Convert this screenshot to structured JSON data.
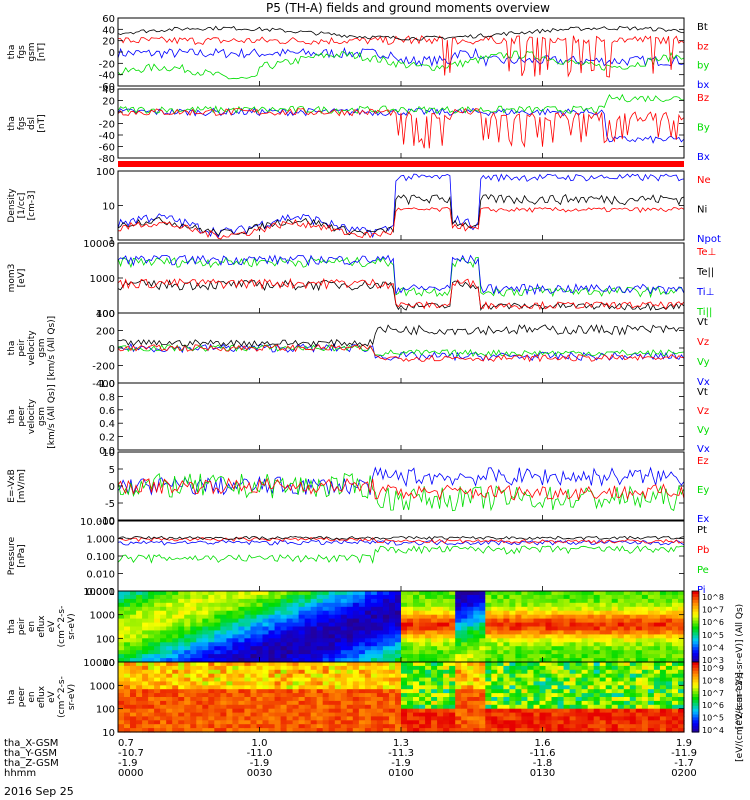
{
  "title": "P5 (TH-A) fields and ground moments overview",
  "date": "2016 Sep 25",
  "chart_data": {
    "type": "line",
    "x_ticks": [
      "0000",
      "0030",
      "0100",
      "0130",
      "0200"
    ],
    "ephemeris": [
      {
        "label": "tha_X-GSM",
        "values": [
          "0.7",
          "1.0",
          "1.3",
          "1.6",
          "1.9"
        ]
      },
      {
        "label": "tha_Y-GSM",
        "values": [
          "-10.7",
          "-11.0",
          "-11.3",
          "-11.6",
          "-11.9"
        ]
      },
      {
        "label": "tha_Z-GSM",
        "values": [
          "-1.9",
          "-1.9",
          "-1.9",
          "-1.8",
          "-1.7"
        ]
      },
      {
        "label": "hhmm",
        "values": [
          "0000",
          "0030",
          "0100",
          "0130",
          "0200"
        ]
      }
    ],
    "panels": [
      {
        "ylabel": [
          "tha",
          "fgs",
          "gsm",
          "[nT]"
        ],
        "yticks": [
          "60",
          "40",
          "20",
          "0",
          "-20",
          "-40",
          "-60"
        ],
        "ylim": [
          -70,
          65
        ],
        "scale": "linear",
        "legend": [
          {
            "name": "Bt",
            "color": "#000000"
          },
          {
            "name": "bz",
            "color": "#ff0000"
          },
          {
            "name": "by",
            "color": "#00dd00"
          },
          {
            "name": "bx",
            "color": "#0000ff"
          }
        ]
      },
      {
        "ylabel": [
          "tha",
          "fgs",
          "dsl",
          "[nT]"
        ],
        "yticks": [
          "40",
          "20",
          "0",
          "-20",
          "-40",
          "-60",
          "-80"
        ],
        "ylim": [
          -95,
          55
        ],
        "scale": "linear",
        "legend": [
          {
            "name": "Bz",
            "color": "#ff0000"
          },
          {
            "name": "By",
            "color": "#00dd00"
          },
          {
            "name": "Bx",
            "color": "#0000ff"
          }
        ]
      },
      {
        "ylabel": [
          "Density",
          "[1/cc]",
          "[cm-3]"
        ],
        "yticks": [
          "100",
          "10",
          "1"
        ],
        "ylim": [
          0.8,
          250
        ],
        "scale": "log",
        "legend": [
          {
            "name": "Ne",
            "color": "#ff0000"
          },
          {
            "name": "Ni",
            "color": "#000000"
          },
          {
            "name": "Npot",
            "color": "#0000ff"
          }
        ]
      },
      {
        "ylabel": [
          "mom3",
          "[eV]"
        ],
        "yticks": [
          "10000",
          "1000",
          "100"
        ],
        "ylim": [
          30,
          12000
        ],
        "scale": "log",
        "legend": [
          {
            "name": "Te⊥",
            "color": "#ff0000"
          },
          {
            "name": "Te||",
            "color": "#000000"
          },
          {
            "name": "Ti⊥",
            "color": "#0000ff"
          },
          {
            "name": "Ti||",
            "color": "#00dd00"
          }
        ]
      },
      {
        "ylabel": [
          "tha",
          "peir",
          "velocity",
          "gsm",
          "[km/s (All Qs)]"
        ],
        "yticks": [
          "400",
          "200",
          "0",
          "-200",
          "-400"
        ],
        "ylim": [
          -420,
          420
        ],
        "scale": "linear",
        "legend": [
          {
            "name": "Vt",
            "color": "#000000"
          },
          {
            "name": "Vz",
            "color": "#ff0000"
          },
          {
            "name": "Vy",
            "color": "#00dd00"
          },
          {
            "name": "Vx",
            "color": "#0000ff"
          }
        ]
      },
      {
        "ylabel": [
          "tha",
          "peer",
          "velocity",
          "gsm",
          "[km/s (All Qs)]"
        ],
        "yticks": [
          "1.0",
          "0.8",
          "0.6",
          "0.4",
          "0.2",
          "0.0"
        ],
        "ylim": [
          0,
          1.0
        ],
        "scale": "linear",
        "legend": [
          {
            "name": "Vt",
            "color": "#000000"
          },
          {
            "name": "Vz",
            "color": "#ff0000"
          },
          {
            "name": "Vy",
            "color": "#00dd00"
          },
          {
            "name": "Vx",
            "color": "#0000ff"
          }
        ]
      },
      {
        "ylabel": [
          "E=-VxB",
          "[mV/m]"
        ],
        "yticks": [
          "10",
          "5",
          "0",
          "-5",
          "-10"
        ],
        "ylim": [
          -11,
          11
        ],
        "scale": "linear",
        "legend": [
          {
            "name": "Ez",
            "color": "#ff0000"
          },
          {
            "name": "Ey",
            "color": "#00dd00"
          },
          {
            "name": "Ex",
            "color": "#0000ff"
          }
        ]
      },
      {
        "ylabel": [
          "Pressure",
          "[nPa]"
        ],
        "yticks": [
          "10.000",
          "1.000",
          "0.100",
          "0.010",
          "0.001"
        ],
        "ylim": [
          0.001,
          10
        ],
        "scale": "log",
        "legend": [
          {
            "name": "Pt",
            "color": "#000000"
          },
          {
            "name": "Pb",
            "color": "#ff0000"
          },
          {
            "name": "Pe",
            "color": "#00dd00"
          },
          {
            "name": "Pi",
            "color": "#0000ff"
          }
        ]
      },
      {
        "ylabel": [
          "tha",
          "peir",
          "en",
          "eflux",
          "eV",
          "(cm^2-s-",
          "sr-eV)"
        ],
        "yticks": [
          "10000",
          "1000",
          "100",
          "10"
        ],
        "ylim": [
          5,
          25000
        ],
        "scale": "log",
        "colorbar": {
          "label": "[eV/(cm^2-s-sr-eV)] (All Qs)",
          "ticks": [
            "10^8",
            "10^7",
            "10^6",
            "10^5",
            "10^4",
            "10^3"
          ]
        }
      },
      {
        "ylabel": [
          "tha",
          "peer",
          "en",
          "eflux",
          "eV",
          "(cm^2-s-",
          "sr-eV)"
        ],
        "yticks": [
          "10000",
          "1000",
          "100",
          "10"
        ],
        "ylim": [
          5,
          25000
        ],
        "scale": "log",
        "colorbar": {
          "label": "[eV/(cm^2-s-sr-eV)]",
          "ticks": [
            "10^9",
            "10^8",
            "10^7",
            "10^6",
            "10^5",
            "10^4"
          ]
        }
      }
    ]
  }
}
